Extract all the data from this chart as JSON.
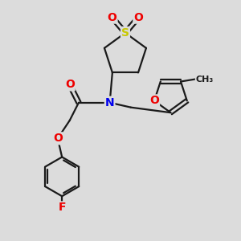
{
  "background_color": "#dcdcdc",
  "bond_color": "#1a1a1a",
  "line_width": 1.6,
  "atom_colors": {
    "S": "#c8c800",
    "O": "#ee0000",
    "N": "#0000ee",
    "F": "#ee0000",
    "C": "#1a1a1a"
  }
}
